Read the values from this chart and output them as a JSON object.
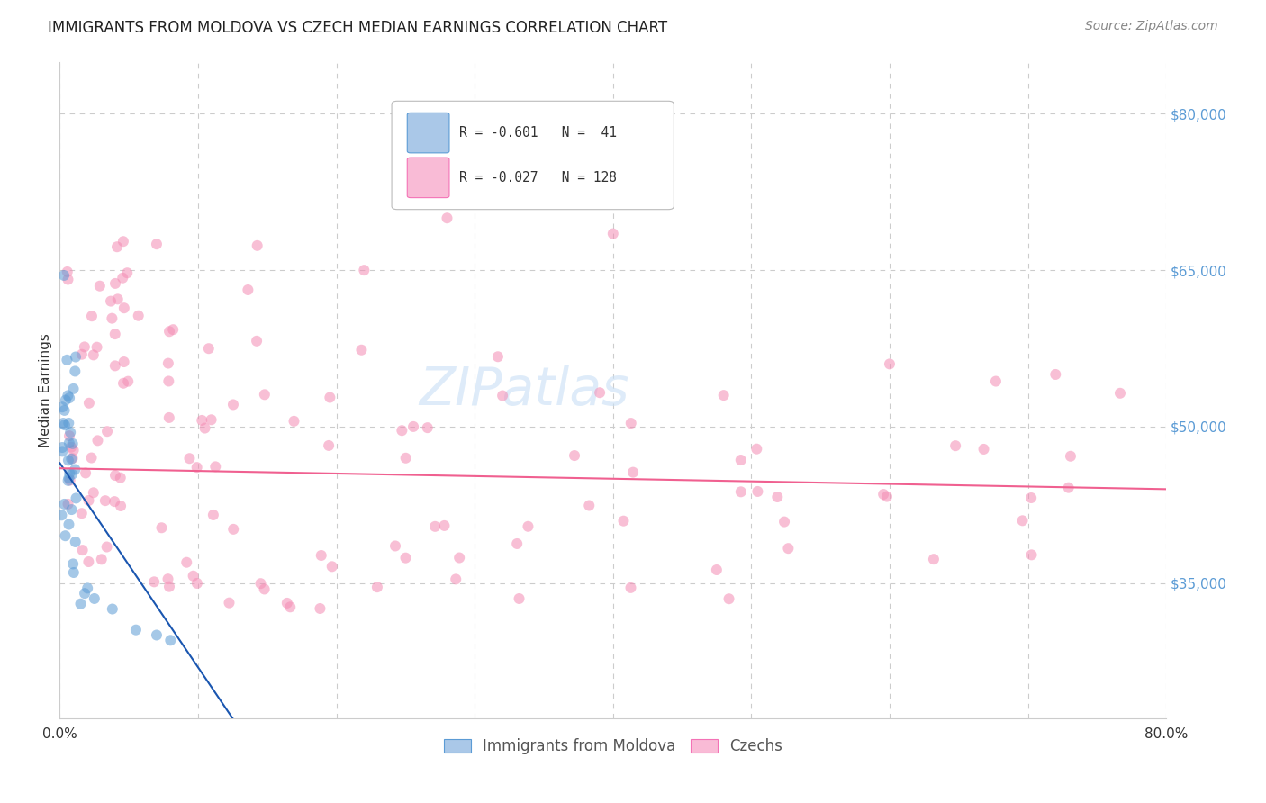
{
  "title": "IMMIGRANTS FROM MOLDOVA VS CZECH MEDIAN EARNINGS CORRELATION CHART",
  "source": "Source: ZipAtlas.com",
  "ylabel": "Median Earnings",
  "watermark": "ZIPatlas",
  "xlim": [
    0.0,
    0.8
  ],
  "ylim": [
    22000,
    85000
  ],
  "ytick_labels": [
    "$80,000",
    "$65,000",
    "$50,000",
    "$35,000"
  ],
  "ytick_values": [
    80000,
    65000,
    50000,
    35000
  ],
  "xtick_vals": [
    0.0,
    0.1,
    0.2,
    0.3,
    0.4,
    0.5,
    0.6,
    0.7,
    0.8
  ],
  "xticklabels": [
    "0.0%",
    "",
    "",
    "",
    "",
    "",
    "",
    "",
    "80.0%"
  ],
  "grid_color": "#cccccc",
  "blue_color": "#5b9bd5",
  "blue_line_color": "#1a56b0",
  "pink_color": "#f48cb4",
  "pink_line_color": "#f06090",
  "legend_R1": "R = -0.601",
  "legend_N1": "N =  41",
  "legend_R2": "R = -0.027",
  "legend_N2": "N = 128",
  "legend_label1": "Immigrants from Moldova",
  "legend_label2": "Czechs",
  "blue_line_x0": 0.0,
  "blue_line_x1": 0.125,
  "blue_line_y0": 46500,
  "blue_line_y1": 22000,
  "pink_line_x0": 0.0,
  "pink_line_x1": 0.8,
  "pink_line_y0": 46000,
  "pink_line_y1": 44000,
  "scatter_size": 75,
  "scatter_alpha": 0.55,
  "line_width": 1.5,
  "background_color": "#ffffff",
  "title_fontsize": 12,
  "source_fontsize": 10,
  "ylabel_fontsize": 11,
  "tick_fontsize": 11,
  "watermark_fontsize": 42,
  "watermark_color": "#c8dff5",
  "watermark_alpha": 0.6
}
